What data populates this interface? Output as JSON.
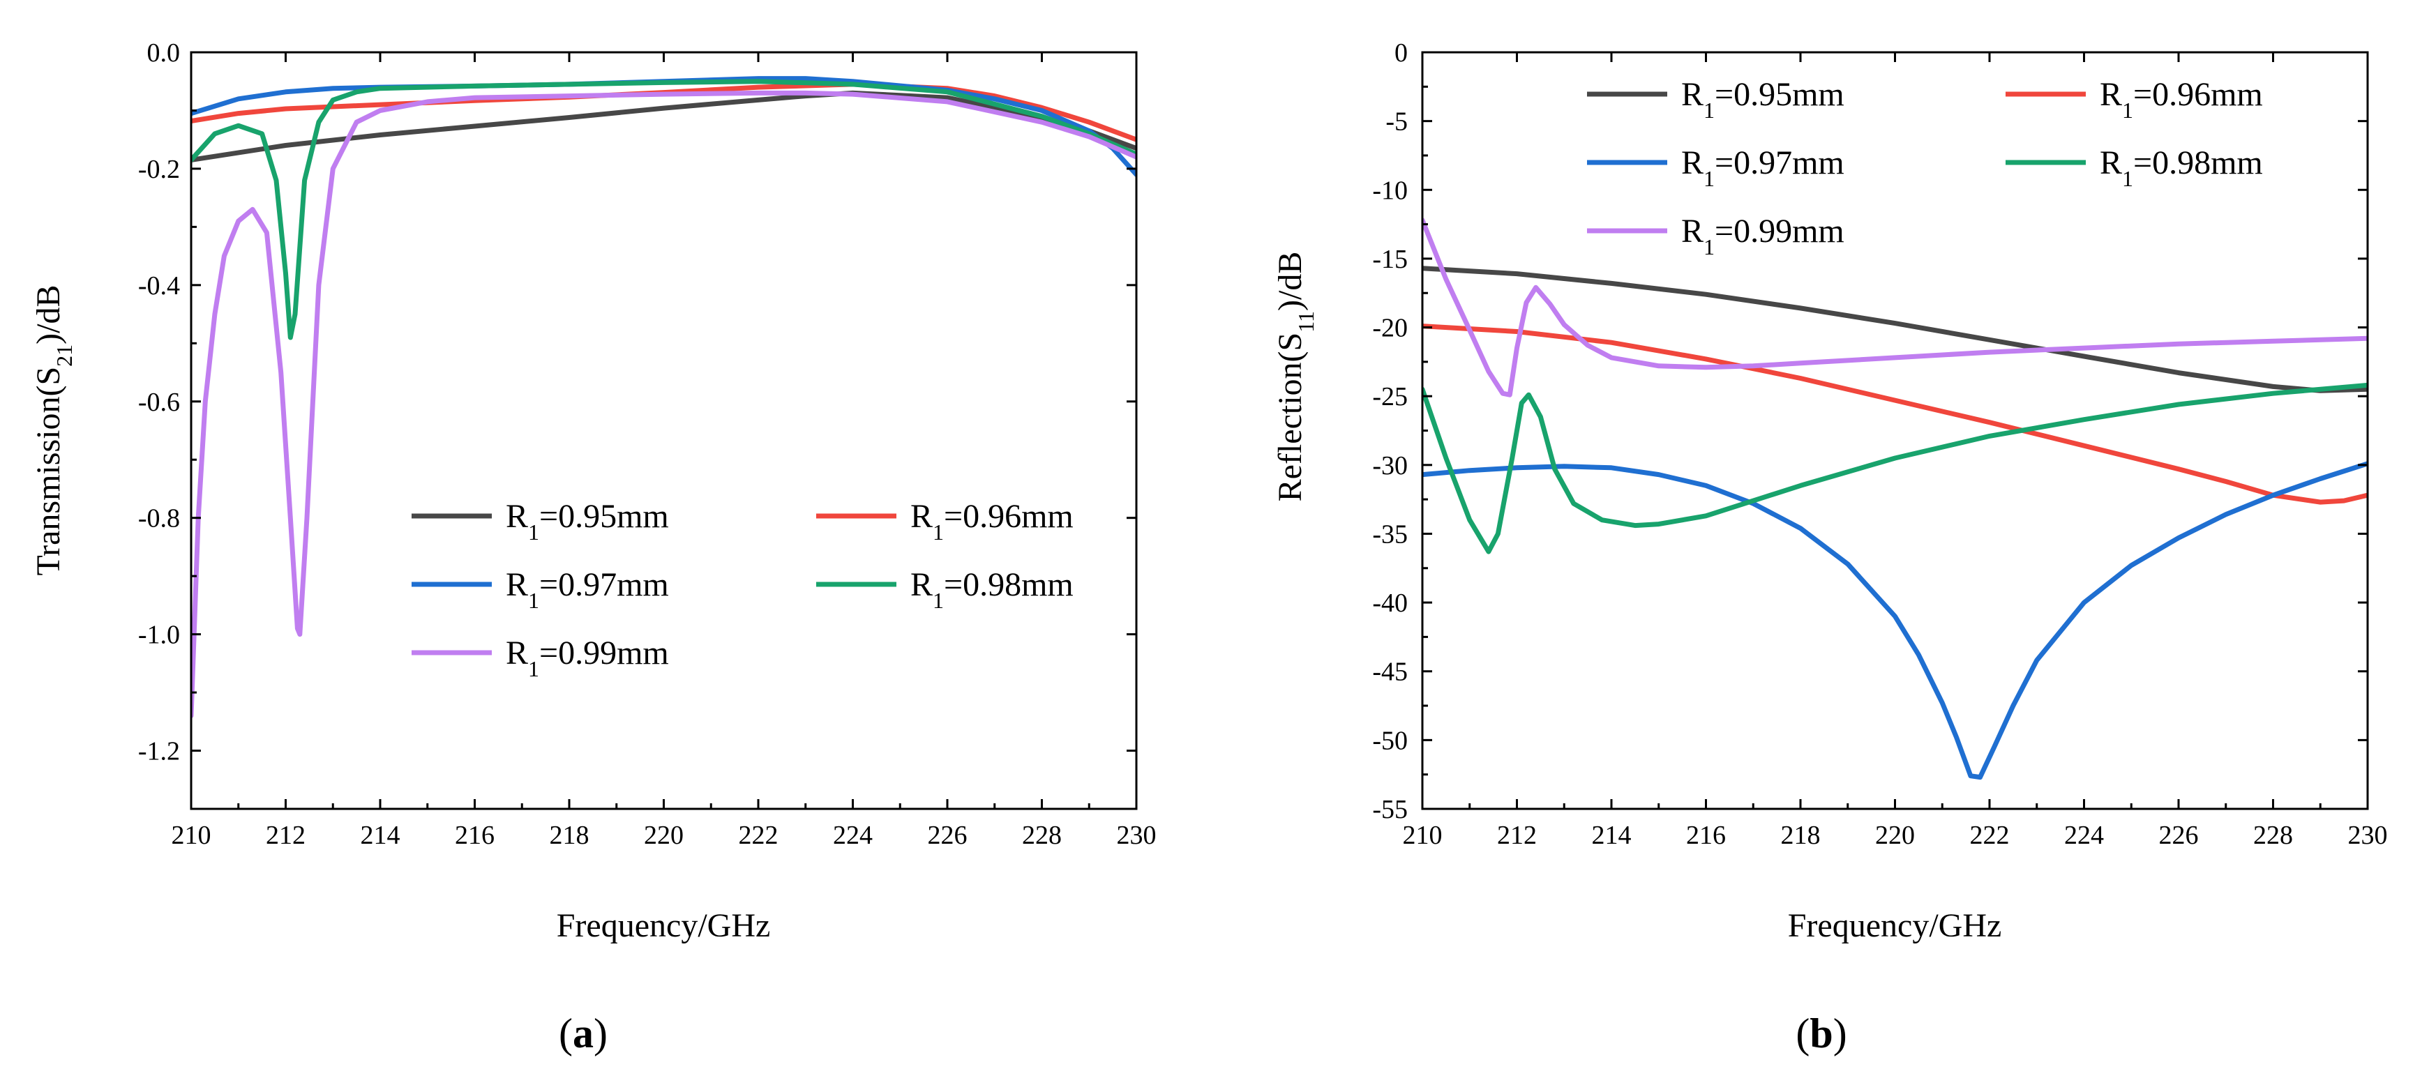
{
  "chart_data": [
    {
      "panel": "a",
      "panel_label": "a",
      "type": "line",
      "xlabel": "Frequency/GHz",
      "ylabel_main": "Transmission(S",
      "ylabel_sub": "21",
      "ylabel_end": ")/dB",
      "xlim": [
        210,
        230
      ],
      "ylim": [
        -1.3,
        0.0
      ],
      "xticks": [
        "210",
        "212",
        "214",
        "216",
        "218",
        "220",
        "222",
        "224",
        "226",
        "228",
        "230"
      ],
      "yticks": [
        "0.0",
        "-0.2",
        "-0.4",
        "-0.6",
        "-0.8",
        "-1.0",
        "-1.2"
      ],
      "legend_location": "lower-center",
      "series": [
        {
          "label_main": "R",
          "label_sub": "1",
          "label_end": "=0.95mm",
          "color": "#474747",
          "x": [
            210,
            212,
            214,
            216,
            218,
            220,
            222,
            223,
            224,
            226,
            228,
            229,
            230
          ],
          "y": [
            -0.185,
            -0.16,
            -0.142,
            -0.127,
            -0.112,
            -0.096,
            -0.082,
            -0.075,
            -0.07,
            -0.078,
            -0.112,
            -0.135,
            -0.165
          ]
        },
        {
          "label_main": "R",
          "label_sub": "1",
          "label_end": "=0.96mm",
          "color": "#f0463c",
          "x": [
            210,
            211,
            212,
            214,
            216,
            218,
            220,
            222,
            224,
            226,
            227,
            228,
            229,
            230
          ],
          "y": [
            -0.118,
            -0.105,
            -0.097,
            -0.09,
            -0.083,
            -0.077,
            -0.069,
            -0.06,
            -0.055,
            -0.062,
            -0.075,
            -0.095,
            -0.12,
            -0.15
          ]
        },
        {
          "label_main": "R",
          "label_sub": "1",
          "label_end": "=0.97mm",
          "color": "#1f6fd1",
          "x": [
            210,
            211,
            212,
            213,
            214,
            216,
            218,
            220,
            222,
            223,
            224,
            226,
            227,
            228,
            229,
            229.5,
            230
          ],
          "y": [
            -0.105,
            -0.08,
            -0.068,
            -0.062,
            -0.06,
            -0.058,
            -0.055,
            -0.05,
            -0.045,
            -0.045,
            -0.05,
            -0.065,
            -0.08,
            -0.1,
            -0.135,
            -0.165,
            -0.21
          ]
        },
        {
          "label_main": "R",
          "label_sub": "1",
          "label_end": "=0.98mm",
          "color": "#18a36c",
          "x": [
            210,
            210.5,
            211,
            211.5,
            211.8,
            212.0,
            212.1,
            212.2,
            212.4,
            212.7,
            213.0,
            213.5,
            214,
            216,
            218,
            220,
            222,
            224,
            226,
            228,
            229,
            230
          ],
          "y": [
            -0.185,
            -0.14,
            -0.126,
            -0.14,
            -0.22,
            -0.38,
            -0.49,
            -0.45,
            -0.22,
            -0.12,
            -0.082,
            -0.068,
            -0.062,
            -0.058,
            -0.055,
            -0.052,
            -0.05,
            -0.055,
            -0.068,
            -0.11,
            -0.14,
            -0.175
          ]
        },
        {
          "label_main": "R",
          "label_sub": "1",
          "label_end": "=0.99mm",
          "color": "#c07ef0",
          "x": [
            210,
            210.15,
            210.3,
            210.5,
            210.7,
            211.0,
            211.3,
            211.6,
            211.9,
            212.1,
            212.25,
            212.3,
            212.45,
            212.7,
            213.0,
            213.5,
            214,
            215,
            216,
            218,
            220,
            222,
            223,
            224,
            226,
            228,
            229,
            230
          ],
          "y": [
            -1.14,
            -0.8,
            -0.6,
            -0.45,
            -0.35,
            -0.29,
            -0.27,
            -0.31,
            -0.55,
            -0.8,
            -0.99,
            -1.0,
            -0.8,
            -0.4,
            -0.2,
            -0.12,
            -0.1,
            -0.085,
            -0.078,
            -0.075,
            -0.072,
            -0.07,
            -0.07,
            -0.072,
            -0.085,
            -0.12,
            -0.145,
            -0.18
          ]
        }
      ]
    },
    {
      "panel": "b",
      "panel_label": "b",
      "type": "line",
      "xlabel": "Frequency/GHz",
      "ylabel_main": "Reflection(S",
      "ylabel_sub": "11",
      "ylabel_end": ")/dB",
      "xlim": [
        210,
        230
      ],
      "ylim": [
        -55,
        0
      ],
      "xticks": [
        "210",
        "212",
        "214",
        "216",
        "218",
        "220",
        "222",
        "224",
        "226",
        "228",
        "230"
      ],
      "yticks": [
        "0",
        "-5",
        "-10",
        "-15",
        "-20",
        "-25",
        "-30",
        "-35",
        "-40",
        "-45",
        "-50",
        "-55"
      ],
      "legend_location": "top-left",
      "series": [
        {
          "label_main": "R",
          "label_sub": "1",
          "label_end": "=0.95mm",
          "color": "#474747",
          "x": [
            210,
            212,
            214,
            216,
            218,
            220,
            222,
            224,
            226,
            228,
            229,
            230
          ],
          "y": [
            -15.7,
            -16.1,
            -16.8,
            -17.6,
            -18.6,
            -19.7,
            -20.9,
            -22.1,
            -23.3,
            -24.3,
            -24.6,
            -24.5
          ]
        },
        {
          "label_main": "R",
          "label_sub": "1",
          "label_end": "=0.96mm",
          "color": "#f0463c",
          "x": [
            210,
            212,
            214,
            216,
            218,
            220,
            222,
            224,
            226,
            227,
            228,
            229,
            229.5,
            230
          ],
          "y": [
            -19.9,
            -20.3,
            -21.1,
            -22.3,
            -23.7,
            -25.3,
            -26.9,
            -28.6,
            -30.3,
            -31.2,
            -32.2,
            -32.7,
            -32.6,
            -32.2
          ]
        },
        {
          "label_main": "R",
          "label_sub": "1",
          "label_end": "=0.97mm",
          "color": "#1f6fd1",
          "x": [
            210,
            211,
            212,
            213,
            214,
            215,
            216,
            217,
            218,
            219,
            220,
            220.5,
            221,
            221.3,
            221.6,
            221.8,
            222.1,
            222.5,
            223,
            224,
            225,
            226,
            227,
            228,
            229,
            230
          ],
          "y": [
            -30.7,
            -30.4,
            -30.2,
            -30.1,
            -30.2,
            -30.7,
            -31.5,
            -32.8,
            -34.6,
            -37.2,
            -41.0,
            -43.8,
            -47.3,
            -49.8,
            -52.6,
            -52.7,
            -50.5,
            -47.5,
            -44.2,
            -40.0,
            -37.3,
            -35.3,
            -33.6,
            -32.2,
            -31.0,
            -29.9
          ]
        },
        {
          "label_main": "R",
          "label_sub": "1",
          "label_end": "=0.98mm",
          "color": "#18a36c",
          "x": [
            210,
            210.5,
            211,
            211.4,
            211.6,
            211.9,
            212.1,
            212.25,
            212.5,
            212.8,
            213.2,
            213.8,
            214.5,
            215,
            216,
            218,
            220,
            222,
            224,
            226,
            228,
            230
          ],
          "y": [
            -24.5,
            -29.5,
            -34.0,
            -36.3,
            -35.0,
            -29.5,
            -25.5,
            -24.9,
            -26.5,
            -30.3,
            -32.8,
            -34.0,
            -34.4,
            -34.3,
            -33.7,
            -31.5,
            -29.5,
            -27.9,
            -26.7,
            -25.6,
            -24.8,
            -24.2
          ]
        },
        {
          "label_main": "R",
          "label_sub": "1",
          "label_end": "=0.99mm",
          "color": "#c07ef0",
          "x": [
            210,
            210.5,
            211,
            211.4,
            211.7,
            211.85,
            212.0,
            212.2,
            212.4,
            212.7,
            213.0,
            213.5,
            214,
            215,
            216,
            217,
            218,
            220,
            222,
            224,
            226,
            228,
            230
          ],
          "y": [
            -12.2,
            -16.5,
            -20.2,
            -23.2,
            -24.8,
            -24.9,
            -21.5,
            -18.2,
            -17.1,
            -18.3,
            -19.8,
            -21.3,
            -22.2,
            -22.8,
            -22.9,
            -22.8,
            -22.6,
            -22.2,
            -21.8,
            -21.5,
            -21.2,
            -21.0,
            -20.8
          ]
        }
      ]
    }
  ]
}
